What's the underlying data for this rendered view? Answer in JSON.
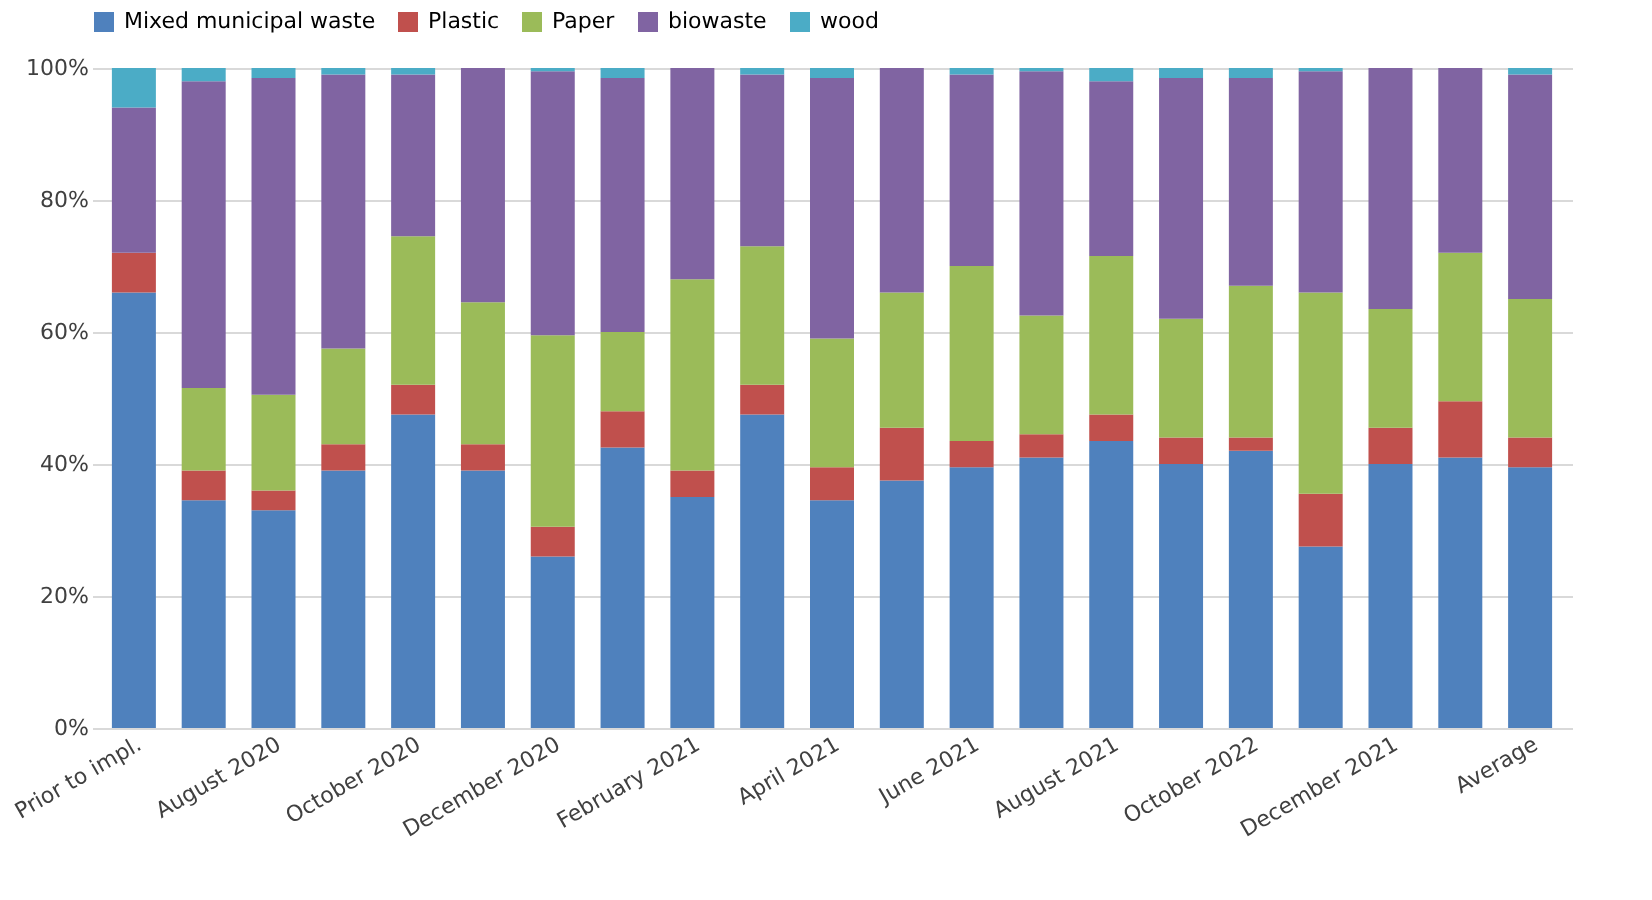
{
  "chart_data": {
    "type": "bar",
    "stacked": true,
    "legend": "top",
    "grid": "y",
    "categories": [
      "Prior to impl.",
      null,
      "August 2020",
      null,
      "October 2020",
      null,
      "December 2020",
      null,
      "February 2021",
      null,
      "April 2021",
      null,
      "June 2021",
      null,
      "August 2021",
      null,
      "October 2022",
      null,
      "December 2021",
      null,
      "Average"
    ],
    "ylim": [
      0,
      100
    ],
    "yticks": [
      {
        "value": 0,
        "label": "0%"
      },
      {
        "value": 20,
        "label": "20%"
      },
      {
        "value": 40,
        "label": "40%"
      },
      {
        "value": 60,
        "label": "60%"
      },
      {
        "value": 80,
        "label": "80%"
      },
      {
        "value": 100,
        "label": "100%"
      }
    ],
    "series": [
      {
        "name": "Mixed municipal waste",
        "color": "#4f81bd",
        "values": [
          66,
          34.5,
          33,
          39,
          47.5,
          39,
          26,
          42.5,
          35,
          47.5,
          34.5,
          37.5,
          39.5,
          41,
          43.5,
          40,
          42,
          27.5,
          40,
          41,
          39.5
        ]
      },
      {
        "name": "Plastic",
        "color": "#c0504d",
        "values": [
          6,
          4.5,
          3,
          4,
          4.5,
          4,
          4.5,
          5.5,
          4,
          4.5,
          5,
          8,
          4,
          3.5,
          4,
          4,
          2,
          8,
          5.5,
          8.5,
          4.5
        ]
      },
      {
        "name": "Paper",
        "color": "#9bbb59",
        "values": [
          0,
          12.5,
          14.5,
          14.5,
          22.5,
          21.5,
          29,
          12,
          29,
          21,
          19.5,
          20.5,
          26.5,
          18,
          24,
          18,
          23,
          30.5,
          18,
          22.5,
          21
        ]
      },
      {
        "name": "biowaste",
        "color": "#8064a2",
        "values": [
          22,
          46.5,
          48,
          41.5,
          24.5,
          35.5,
          40,
          38.5,
          32,
          26,
          39.5,
          34,
          29,
          37,
          26.5,
          36.5,
          31.5,
          33.5,
          36.5,
          28,
          34
        ]
      },
      {
        "name": "wood",
        "color": "#4bacc6",
        "values": [
          6,
          2,
          1.5,
          1,
          1,
          0,
          0.5,
          1.5,
          0,
          1,
          1.5,
          0,
          1,
          0.5,
          2,
          1.5,
          1.5,
          0.5,
          0,
          0,
          1
        ]
      }
    ]
  }
}
